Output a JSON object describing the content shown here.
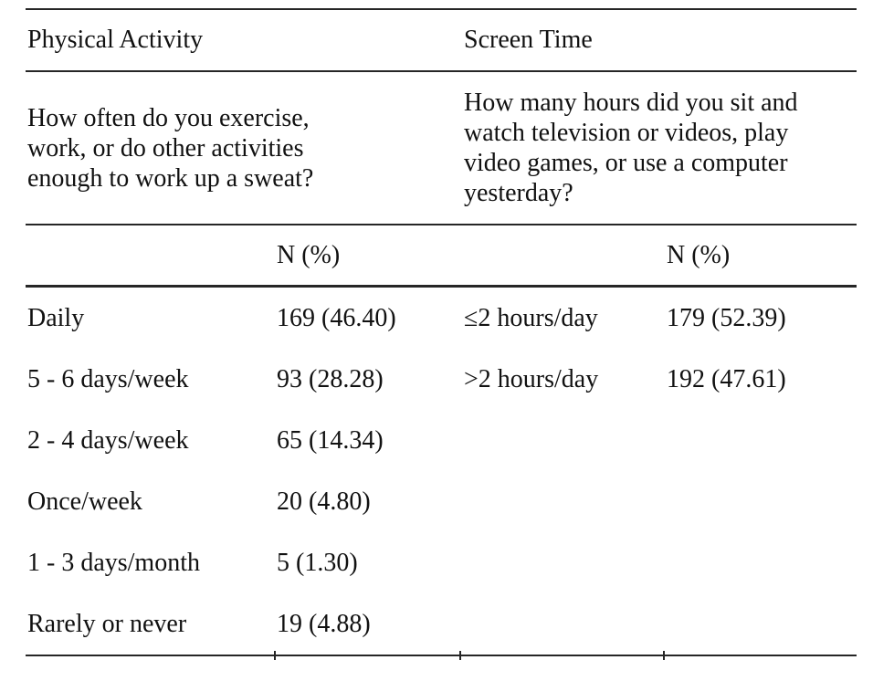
{
  "table": {
    "physical_activity": {
      "title": "Physical Activity",
      "question": "How often do you exercise,\nwork, or do other activities\nenough to work up a sweat?",
      "col_header": "N (%)",
      "rows": [
        {
          "label": "Daily",
          "value": "169 (46.40)"
        },
        {
          "label": "5 - 6 days/week",
          "value": "93 (28.28)"
        },
        {
          "label": "2 - 4 days/week",
          "value": "65 (14.34)"
        },
        {
          "label": "Once/week",
          "value": "20 (4.80)"
        },
        {
          "label": "1 - 3 days/month",
          "value": "5 (1.30)"
        },
        {
          "label": "Rarely or never",
          "value": "19 (4.88)"
        }
      ]
    },
    "screen_time": {
      "title": "Screen Time",
      "question": "How many hours did you sit and\nwatch television or videos, play\nvideo games, or use a computer\nyesterday?",
      "col_header": "N (%)",
      "rows": [
        {
          "label": "≤2 hours/day",
          "value": "179 (52.39)"
        },
        {
          "label": ">2 hours/day",
          "value": "192 (47.61)"
        }
      ]
    },
    "colors": {
      "text": "#111111",
      "rule": "#262626",
      "background": "#ffffff"
    }
  }
}
